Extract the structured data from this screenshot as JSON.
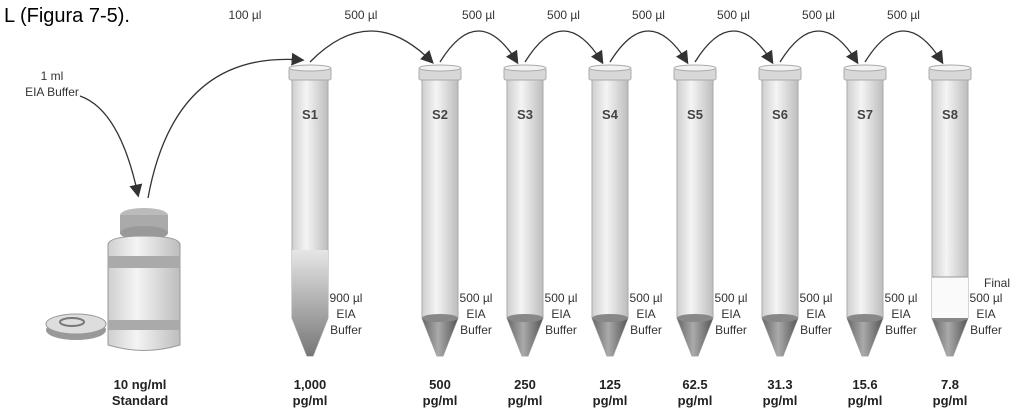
{
  "caption": "L (Figura 7-5).",
  "standard": {
    "buffer_label": [
      "1 ml",
      "EIA Buffer"
    ],
    "concentration": [
      "10 ng/ml",
      "Standard"
    ]
  },
  "transfers": [
    "100 µl",
    "500 µl",
    "500 µl",
    "500 µl",
    "500 µl",
    "500 µl",
    "500 µl",
    "500 µl"
  ],
  "tubes": [
    {
      "label": "S1",
      "buffer": [
        "900 µl",
        "EIA",
        "Buffer"
      ],
      "concentration": [
        "1,000",
        "pg/ml"
      ]
    },
    {
      "label": "S2",
      "buffer": [
        "500 µl",
        "EIA",
        "Buffer"
      ],
      "concentration": [
        "500",
        "pg/ml"
      ]
    },
    {
      "label": "S3",
      "buffer": [
        "500 µl",
        "EIA",
        "Buffer"
      ],
      "concentration": [
        "250",
        "pg/ml"
      ]
    },
    {
      "label": "S4",
      "buffer": [
        "500 µl",
        "EIA",
        "Buffer"
      ],
      "concentration": [
        "125",
        "pg/ml"
      ]
    },
    {
      "label": "S5",
      "buffer": [
        "500 µl",
        "EIA",
        "Buffer"
      ],
      "concentration": [
        "62.5",
        "pg/ml"
      ]
    },
    {
      "label": "S6",
      "buffer": [
        "500 µl",
        "EIA",
        "Buffer"
      ],
      "concentration": [
        "31.3",
        "pg/ml"
      ]
    },
    {
      "label": "S7",
      "buffer": [
        "500 µl",
        "EIA",
        "Buffer"
      ],
      "concentration": [
        "15.6",
        "pg/ml"
      ]
    },
    {
      "label": "S8",
      "buffer": [
        "500 µl",
        "EIA",
        "Buffer"
      ],
      "concentration": [
        "7.8",
        "pg/ml"
      ]
    }
  ],
  "final_label": "Final"
}
